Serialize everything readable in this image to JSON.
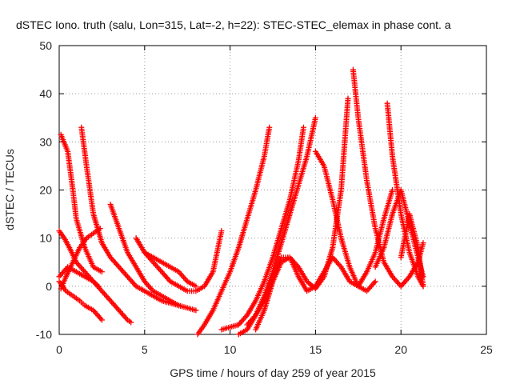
{
  "chart_data": {
    "type": "scatter",
    "title": "dSTEC Iono. truth (salu, Lon=315, Lat=-2, h=22): STEC-STEC_elemax in phase cont. a",
    "xlabel": "GPS time / hours of day 259 of year 2015",
    "ylabel": "dSTEC  / TECUs",
    "xlim": [
      0,
      25
    ],
    "ylim": [
      -10,
      50
    ],
    "xticks": [
      0,
      5,
      10,
      15,
      20,
      25
    ],
    "yticks": [
      -10,
      0,
      10,
      20,
      30,
      40,
      50
    ],
    "xtick_labels": [
      "0",
      "5",
      "10",
      "15",
      "20",
      "25"
    ],
    "ytick_labels": [
      "-10",
      "0",
      "10",
      "20",
      "30",
      "40",
      "50"
    ],
    "grid": true,
    "marker": "plus",
    "color": "#ff0000",
    "series": [
      {
        "x": [
          0.1,
          0.5,
          0.8,
          1.0,
          1.5,
          2.0,
          2.5
        ],
        "y": [
          31.5,
          28,
          20,
          14,
          8,
          4,
          3
        ]
      },
      {
        "x": [
          0.0,
          0.3,
          0.6,
          1.0,
          1.5,
          2.0,
          2.5,
          3.0,
          3.5,
          4.0,
          4.2
        ],
        "y": [
          11.5,
          10,
          8,
          5,
          3,
          1,
          -1,
          -3,
          -5,
          -7,
          -7.5
        ]
      },
      {
        "x": [
          0.0,
          0.4,
          0.8,
          1.2,
          1.5,
          2.0,
          2.5
        ],
        "y": [
          1,
          -1,
          -2,
          -3,
          -4,
          -5,
          -7
        ]
      },
      {
        "x": [
          0.1,
          0.4,
          0.8,
          1.2,
          1.6,
          2.0,
          2.4
        ],
        "y": [
          -0.5,
          2,
          5,
          8,
          10,
          11,
          12
        ]
      },
      {
        "x": [
          0.0,
          0.5,
          1.0,
          1.5,
          2.0,
          2.3
        ],
        "y": [
          2,
          4,
          3,
          2,
          1,
          0
        ]
      },
      {
        "x": [
          1.3,
          1.6,
          2.0,
          2.5,
          3.0,
          3.5,
          4.0,
          4.5,
          5.0,
          5.5,
          6.0,
          6.5,
          7.0
        ],
        "y": [
          33,
          25,
          15,
          9,
          6,
          4,
          2,
          0,
          -1,
          -2,
          -3,
          -3.5,
          -4
        ]
      },
      {
        "x": [
          3.0,
          3.5,
          4.0,
          4.5,
          5.0,
          5.5,
          6.0,
          6.5,
          7.0,
          7.5,
          8.0
        ],
        "y": [
          17,
          12,
          7,
          4,
          1,
          -1,
          -2,
          -3,
          -4,
          -4.5,
          -5
        ]
      },
      {
        "x": [
          4.5,
          5.0,
          5.5,
          6.0,
          6.5,
          7.0,
          7.5,
          8.0,
          8.5,
          9.0,
          9.5
        ],
        "y": [
          10,
          7,
          5,
          3,
          1,
          0,
          -1,
          -1,
          0,
          3,
          11.5
        ]
      },
      {
        "x": [
          5.0,
          5.5,
          6.0,
          6.5,
          7.0,
          7.5,
          8.0
        ],
        "y": [
          7,
          6,
          5,
          4,
          3,
          1,
          0
        ]
      },
      {
        "x": [
          8.1,
          8.5,
          9.0,
          9.5,
          10.0,
          10.5,
          11.0,
          11.5,
          12.0,
          12.3
        ],
        "y": [
          -10,
          -8,
          -5,
          -1,
          3,
          8,
          14,
          20,
          27,
          33
        ]
      },
      {
        "x": [
          9.5,
          10.0,
          10.5,
          11.0,
          11.5,
          12.0,
          12.5,
          13.0,
          13.5,
          14.0,
          14.3
        ],
        "y": [
          -9,
          -8.5,
          -8,
          -6,
          -3,
          1,
          6,
          12,
          18,
          26,
          33
        ]
      },
      {
        "x": [
          10.5,
          11.0,
          11.5,
          12.0,
          12.5,
          13.0,
          13.5,
          14.0,
          14.5,
          15.0
        ],
        "y": [
          -10,
          -9,
          -6,
          -2,
          3,
          9,
          15,
          21,
          27,
          35
        ]
      },
      {
        "x": [
          11.0,
          11.5,
          12.0,
          12.5,
          13.0,
          13.5,
          14.0,
          14.5,
          15.0,
          15.5,
          16.0,
          16.5,
          16.9
        ],
        "y": [
          -8,
          -6,
          -3,
          1,
          6,
          6,
          4,
          1,
          -0.5,
          2,
          8,
          20,
          39
        ]
      },
      {
        "x": [
          11.5,
          12.0,
          12.5,
          13.0,
          13.5,
          14.0,
          14.5,
          15.0,
          15.5,
          16.0,
          16.5,
          17.0,
          17.5,
          18.0,
          18.5,
          19.0,
          19.5
        ],
        "y": [
          -9,
          -5,
          1,
          5,
          6,
          2,
          -1,
          0,
          3,
          6,
          4,
          1,
          0,
          3,
          7,
          14,
          20
        ]
      },
      {
        "x": [
          15.0,
          15.5,
          16.0,
          16.5,
          17.0,
          17.5,
          18.0,
          18.5
        ],
        "y": [
          28,
          25,
          18,
          10,
          4,
          0,
          -1,
          1
        ]
      },
      {
        "x": [
          17.2,
          17.5,
          18.0,
          18.5,
          19.0,
          19.5,
          20.0,
          20.5,
          21.0,
          21.3
        ],
        "y": [
          45,
          35,
          22,
          12,
          5,
          2,
          0,
          2,
          5,
          9
        ]
      },
      {
        "x": [
          19.2,
          19.5,
          20.0,
          20.5,
          21.0,
          21.3
        ],
        "y": [
          38,
          27,
          15,
          7,
          2,
          0
        ]
      },
      {
        "x": [
          18.5,
          19.0,
          19.5,
          20.0,
          20.5,
          21.0,
          21.3
        ],
        "y": [
          4,
          8,
          15,
          20,
          13,
          6,
          2
        ]
      },
      {
        "x": [
          20.0,
          20.5,
          21.0,
          21.3
        ],
        "y": [
          6,
          15,
          8,
          0
        ]
      }
    ]
  }
}
